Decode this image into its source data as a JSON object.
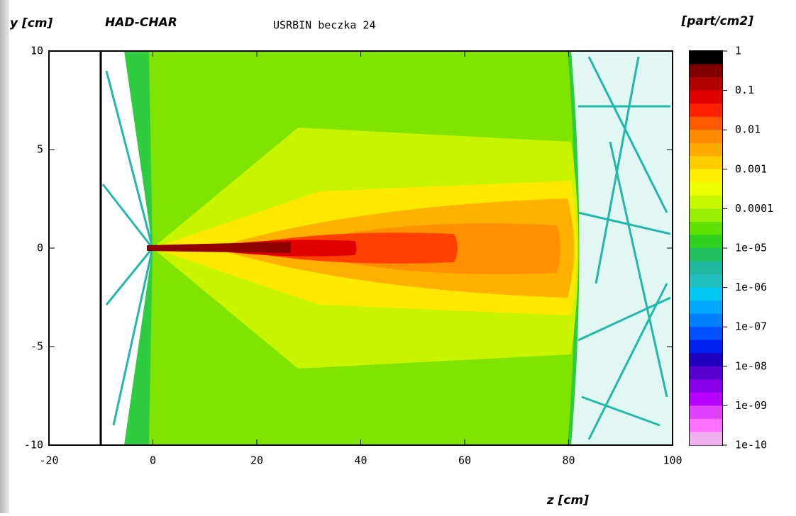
{
  "chart_data": {
    "type": "heatmap",
    "title": "USRBIN beczka 24",
    "label": "HAD-CHAR",
    "xlabel": "z [cm]",
    "ylabel": "y [cm]",
    "xlim": [
      -20,
      100
    ],
    "xticks": [
      -20,
      0,
      20,
      40,
      60,
      80,
      100
    ],
    "ylim": [
      -10,
      10
    ],
    "yticks": [
      -10,
      -5,
      0,
      5,
      10
    ],
    "colorbar": {
      "label": "[part/cm2]",
      "log": true,
      "lim": [
        1e-10,
        1
      ],
      "ticks": [
        1,
        0.1,
        0.01,
        0.001,
        0.0001,
        {
          "value": 1e-05,
          "label": "1e-05"
        },
        {
          "value": 1e-06,
          "label": "1e-06"
        },
        {
          "value": 1e-07,
          "label": "1e-07"
        },
        {
          "value": 1e-08,
          "label": "1e-08"
        },
        {
          "value": 1e-09,
          "label": "1e-09"
        },
        {
          "value": 1e-10,
          "label": "1e-10"
        }
      ],
      "colors": [
        "#000000",
        "#800000",
        "#b00000",
        "#e00000",
        "#ff2000",
        "#ff5a00",
        "#ff8c00",
        "#ffaa00",
        "#ffcc00",
        "#ffee00",
        "#eeff00",
        "#c8f800",
        "#98ee00",
        "#60e000",
        "#30d020",
        "#20c060",
        "#20b8a0",
        "#20c0c0",
        "#00c8f0",
        "#00a8ff",
        "#0080ff",
        "#0050ff",
        "#0020f0",
        "#2000c0",
        "#5800d0",
        "#8800e8",
        "#b800ff",
        "#e040ff",
        "#ff70ff",
        "#f0b0f0"
      ]
    }
  }
}
